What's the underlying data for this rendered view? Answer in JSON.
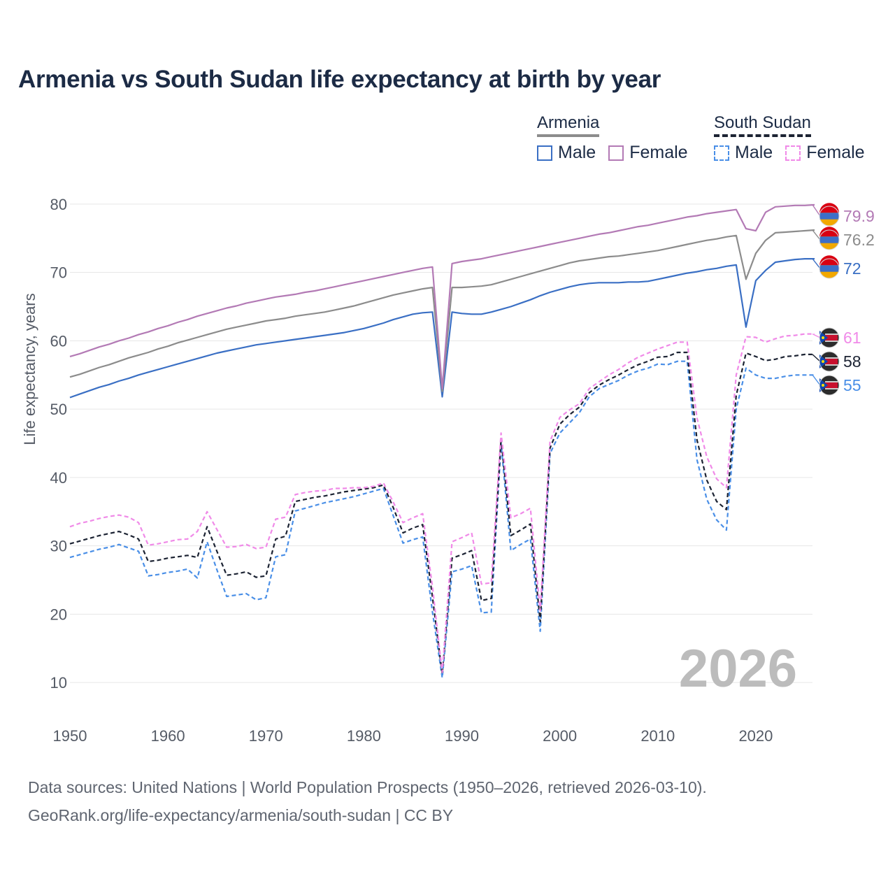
{
  "title": "Armenia vs South Sudan life expectancy at birth by year",
  "legend": {
    "groups": [
      {
        "name": "Armenia",
        "style": "solid",
        "items": [
          {
            "label": "Male",
            "color": "#3a6fc4"
          },
          {
            "label": "Female",
            "color": "#b37ab5"
          }
        ]
      },
      {
        "name": "South Sudan",
        "style": "dashed",
        "items": [
          {
            "label": "Male",
            "color": "#4a8fe7"
          },
          {
            "label": "Female",
            "color": "#f08ae8"
          }
        ]
      }
    ]
  },
  "chart_data": {
    "type": "line",
    "title": "Armenia vs South Sudan life expectancy at birth by year",
    "xlabel": "",
    "ylabel": "Life expectancy, years",
    "xlim": [
      1950,
      2026
    ],
    "ylim": [
      5,
      85
    ],
    "xticks": [
      1950,
      1960,
      1970,
      1980,
      1990,
      2000,
      2010,
      2020
    ],
    "yticks": [
      10,
      20,
      30,
      40,
      50,
      60,
      70,
      80
    ],
    "current_year": "2026",
    "x_start": 1950,
    "series": [
      {
        "name": "Armenia Male",
        "country": "Armenia",
        "sex": "Male",
        "color": "#3a6fc4",
        "dashed": false,
        "end_label": "72",
        "values": [
          51.7,
          52.2,
          52.7,
          53.2,
          53.6,
          54.1,
          54.5,
          55.0,
          55.4,
          55.8,
          56.2,
          56.6,
          57.0,
          57.4,
          57.8,
          58.2,
          58.5,
          58.8,
          59.1,
          59.4,
          59.6,
          59.8,
          60.0,
          60.2,
          60.4,
          60.6,
          60.8,
          61.0,
          61.2,
          61.5,
          61.8,
          62.2,
          62.6,
          63.1,
          63.5,
          63.9,
          64.1,
          64.2,
          51.8,
          64.2,
          64.0,
          63.9,
          63.9,
          64.2,
          64.6,
          65.0,
          65.5,
          66.0,
          66.6,
          67.1,
          67.5,
          67.9,
          68.2,
          68.4,
          68.5,
          68.5,
          68.5,
          68.6,
          68.6,
          68.7,
          69.0,
          69.3,
          69.6,
          69.9,
          70.1,
          70.4,
          70.6,
          70.9,
          71.1,
          62.0,
          68.8,
          70.3,
          71.5,
          71.7,
          71.9,
          72.0,
          72.0
        ]
      },
      {
        "name": "Armenia Total",
        "country": "Armenia",
        "sex": "Total",
        "color": "#8c8c8c",
        "dashed": false,
        "end_label": "76.2",
        "values": [
          54.7,
          55.1,
          55.6,
          56.1,
          56.5,
          57.0,
          57.5,
          57.9,
          58.3,
          58.8,
          59.2,
          59.7,
          60.1,
          60.5,
          60.9,
          61.3,
          61.7,
          62.0,
          62.3,
          62.6,
          62.9,
          63.1,
          63.3,
          63.6,
          63.8,
          64.0,
          64.2,
          64.5,
          64.8,
          65.1,
          65.5,
          65.9,
          66.3,
          66.7,
          67.0,
          67.3,
          67.6,
          67.8,
          52.6,
          67.8,
          67.8,
          67.9,
          68.0,
          68.2,
          68.6,
          69.0,
          69.4,
          69.8,
          70.2,
          70.6,
          71.0,
          71.4,
          71.7,
          71.9,
          72.1,
          72.3,
          72.4,
          72.6,
          72.8,
          73.0,
          73.2,
          73.5,
          73.8,
          74.1,
          74.4,
          74.7,
          74.9,
          75.2,
          75.4,
          69.0,
          72.8,
          74.7,
          75.8,
          75.9,
          76.0,
          76.1,
          76.2
        ]
      },
      {
        "name": "Armenia Female",
        "country": "Armenia",
        "sex": "Female",
        "color": "#b37ab5",
        "dashed": false,
        "end_label": "79.9",
        "values": [
          57.7,
          58.1,
          58.6,
          59.1,
          59.5,
          60.0,
          60.4,
          60.9,
          61.3,
          61.8,
          62.2,
          62.7,
          63.1,
          63.6,
          64.0,
          64.4,
          64.8,
          65.1,
          65.5,
          65.8,
          66.1,
          66.4,
          66.6,
          66.8,
          67.1,
          67.3,
          67.6,
          67.9,
          68.2,
          68.5,
          68.8,
          69.1,
          69.4,
          69.7,
          70.0,
          70.3,
          70.6,
          70.8,
          53.0,
          71.3,
          71.6,
          71.8,
          72.0,
          72.3,
          72.6,
          72.9,
          73.2,
          73.5,
          73.8,
          74.1,
          74.4,
          74.7,
          75.0,
          75.3,
          75.6,
          75.8,
          76.1,
          76.4,
          76.7,
          76.9,
          77.2,
          77.5,
          77.8,
          78.1,
          78.3,
          78.6,
          78.8,
          79.0,
          79.2,
          76.4,
          76.1,
          78.8,
          79.6,
          79.7,
          79.8,
          79.8,
          79.9
        ]
      },
      {
        "name": "South Sudan Male",
        "country": "South Sudan",
        "sex": "Male",
        "color": "#4a8fe7",
        "dashed": true,
        "end_label": "55",
        "values": [
          28.3,
          28.7,
          29.1,
          29.5,
          29.8,
          30.2,
          29.7,
          29.2,
          25.6,
          25.8,
          26.1,
          26.3,
          26.6,
          25.3,
          30.6,
          26.5,
          22.6,
          22.8,
          23.0,
          22.1,
          22.4,
          28.4,
          28.7,
          35.1,
          35.5,
          35.9,
          36.3,
          36.6,
          36.9,
          37.2,
          37.6,
          38.0,
          38.4,
          34.4,
          30.4,
          30.9,
          31.3,
          20.3,
          10.7,
          26.2,
          26.6,
          27.1,
          20.2,
          20.3,
          45.0,
          29.3,
          30.2,
          31.0,
          17.5,
          43.5,
          46.5,
          48.0,
          49.5,
          51.8,
          53.0,
          53.6,
          54.2,
          55.0,
          55.6,
          56.0,
          56.6,
          56.5,
          57.0,
          57.0,
          42.6,
          36.8,
          33.8,
          32.3,
          50.0,
          56.0,
          55.0,
          54.5,
          54.5,
          54.8,
          55.0,
          55.0,
          55.0
        ]
      },
      {
        "name": "South Sudan Total",
        "country": "South Sudan",
        "sex": "Total",
        "color": "#1c2333",
        "dashed": true,
        "end_label": "58",
        "values": [
          30.3,
          30.7,
          31.1,
          31.5,
          31.8,
          32.1,
          31.6,
          31.0,
          27.7,
          27.9,
          28.2,
          28.4,
          28.6,
          28.3,
          32.8,
          29.2,
          25.7,
          25.9,
          26.2,
          25.4,
          25.6,
          31.0,
          31.4,
          36.5,
          36.8,
          37.1,
          37.3,
          37.6,
          37.9,
          38.1,
          38.3,
          38.5,
          38.9,
          35.6,
          31.9,
          32.6,
          33.1,
          22.5,
          11.2,
          28.2,
          28.7,
          29.3,
          22.0,
          22.3,
          45.7,
          31.5,
          32.3,
          33.2,
          18.9,
          44.3,
          47.8,
          49.2,
          50.3,
          52.4,
          53.5,
          54.3,
          55.0,
          55.8,
          56.5,
          57.0,
          57.6,
          57.7,
          58.3,
          58.3,
          45.5,
          39.6,
          36.5,
          35.3,
          52.0,
          58.2,
          57.7,
          57.1,
          57.3,
          57.7,
          57.8,
          58.0,
          58.0
        ]
      },
      {
        "name": "South Sudan Female",
        "country": "South Sudan",
        "sex": "Female",
        "color": "#f08ae8",
        "dashed": true,
        "end_label": "61",
        "values": [
          32.8,
          33.3,
          33.6,
          34.0,
          34.3,
          34.5,
          34.2,
          33.4,
          30.1,
          30.3,
          30.6,
          30.9,
          31.0,
          32.1,
          35.0,
          32.4,
          29.8,
          29.9,
          30.2,
          29.6,
          29.8,
          33.9,
          34.2,
          37.5,
          37.8,
          38.0,
          38.1,
          38.4,
          38.4,
          38.5,
          38.5,
          38.7,
          39.2,
          36.4,
          33.4,
          34.1,
          34.7,
          24.0,
          11.5,
          30.6,
          31.2,
          31.9,
          24.4,
          24.6,
          46.5,
          34.1,
          34.7,
          35.5,
          20.5,
          45.3,
          48.8,
          49.9,
          50.8,
          53.0,
          54.0,
          55.0,
          55.8,
          56.8,
          57.6,
          58.2,
          58.8,
          59.3,
          59.8,
          59.8,
          48.7,
          43.0,
          39.8,
          38.5,
          55.0,
          60.6,
          60.5,
          59.8,
          60.3,
          60.7,
          60.8,
          61.0,
          61.0
        ]
      }
    ]
  },
  "footer": {
    "line1": "Data sources: United Nations | World Population Prospects (1950–2026, retrieved 2026-03-10).",
    "line2": "GeoRank.org/life-expectancy/armenia/south-sudan | CC BY"
  }
}
